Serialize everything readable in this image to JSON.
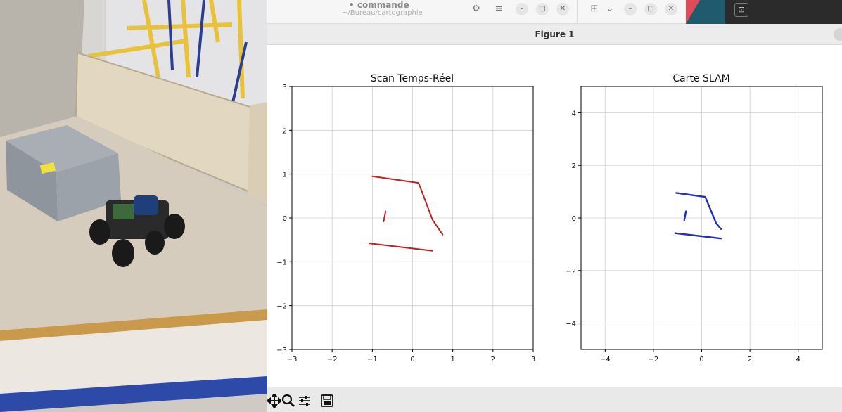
{
  "window": {
    "app_title": "• commande",
    "app_path": "~/Bureau/cartographie",
    "figure_title": "Figure 1"
  },
  "toolbar": {
    "tools": [
      "pan-icon",
      "zoom-icon",
      "configure-subplots-icon",
      "save-icon"
    ]
  },
  "colors": {
    "scan_line": "#c21f1f",
    "slam_line": "#1f2fb8",
    "grid": "#d0d0d0"
  },
  "chart_data": [
    {
      "type": "scatter",
      "title": "Scan Temps-Réel",
      "xlim": [
        -3,
        3
      ],
      "ylim": [
        -3,
        3
      ],
      "xticks": [
        -3,
        -2,
        -1,
        0,
        1,
        2,
        3
      ],
      "yticks": [
        -3,
        -2,
        -1,
        0,
        1,
        2,
        3
      ],
      "grid": true,
      "series": [
        {
          "points": [
            [
              -1.0,
              0.95
            ],
            [
              0.15,
              0.8
            ],
            [
              0.5,
              -0.05
            ],
            [
              0.75,
              -0.38
            ]
          ]
        },
        {
          "points": [
            [
              -1.08,
              -0.58
            ],
            [
              0.5,
              -0.75
            ]
          ]
        },
        {
          "points": [
            [
              -0.67,
              0.15
            ],
            [
              -0.72,
              -0.08
            ]
          ]
        }
      ]
    },
    {
      "type": "scatter",
      "title": "Carte SLAM",
      "xlim": [
        -5,
        5
      ],
      "ylim": [
        -5,
        5
      ],
      "xticks": [
        -4,
        -2,
        0,
        2,
        4
      ],
      "yticks": [
        -4,
        -2,
        0,
        2,
        4
      ],
      "grid": true,
      "series": [
        {
          "points": [
            [
              -1.05,
              0.95
            ],
            [
              0.15,
              0.8
            ],
            [
              0.6,
              -0.2
            ],
            [
              0.8,
              -0.42
            ]
          ]
        },
        {
          "points": [
            [
              -1.1,
              -0.58
            ],
            [
              0.8,
              -0.78
            ]
          ]
        },
        {
          "points": [
            [
              -0.65,
              0.25
            ],
            [
              -0.72,
              -0.08
            ]
          ]
        }
      ]
    }
  ]
}
